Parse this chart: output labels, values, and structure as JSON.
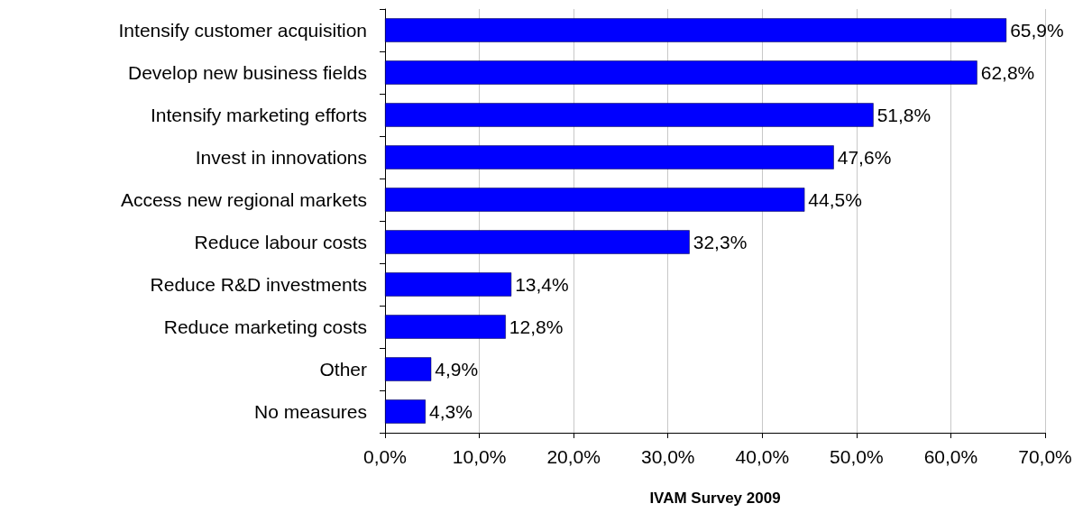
{
  "chart_data": {
    "type": "bar",
    "orientation": "horizontal",
    "xlabel": "IVAM Survey 2009",
    "categories": [
      "Intensify customer acquisition",
      "Develop new business fields",
      "Intensify marketing efforts",
      "Invest in innovations",
      "Access new regional markets",
      "Reduce labour costs",
      "Reduce R&D investments",
      "Reduce marketing costs",
      "Other",
      "No measures"
    ],
    "values": [
      65.9,
      62.8,
      51.8,
      47.6,
      44.5,
      32.3,
      13.4,
      12.8,
      4.9,
      4.3
    ],
    "value_labels": [
      "65,9%",
      "62,8%",
      "51,8%",
      "47,6%",
      "44,5%",
      "32,3%",
      "13,4%",
      "12,8%",
      "4,9%",
      "4,3%"
    ],
    "color": "#0000ff",
    "xlim": [
      0,
      70
    ],
    "xticks": [
      {
        "value": 0,
        "label": "0,0%"
      },
      {
        "value": 10,
        "label": "10,0%"
      },
      {
        "value": 20,
        "label": "20,0%"
      },
      {
        "value": 30,
        "label": "30,0%"
      },
      {
        "value": 40,
        "label": "40,0%"
      },
      {
        "value": 50,
        "label": "50,0%"
      },
      {
        "value": 60,
        "label": "60,0%"
      },
      {
        "value": 70,
        "label": "70,0%"
      }
    ],
    "grid": "x"
  }
}
